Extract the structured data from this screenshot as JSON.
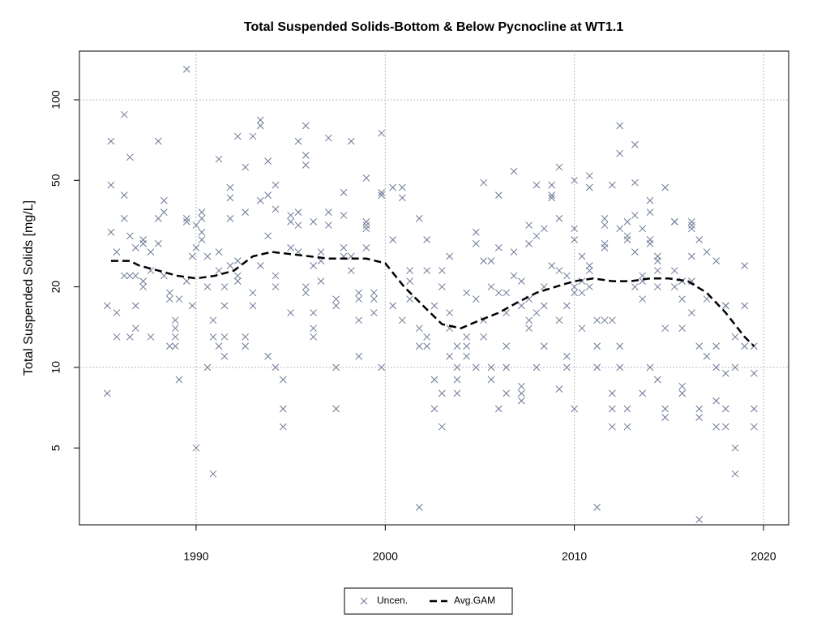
{
  "chart_data": {
    "type": "scatter",
    "title": "Total Suspended Solids-Bottom & Below Pycnocline at WT1.1",
    "y_label": "Total Suspended Solids [mg/L]",
    "log_y": true,
    "xlim": [
      1983.83,
      2021.33
    ],
    "xticks": [
      1990,
      2000,
      2010,
      2020
    ],
    "ylim": [
      2.58,
      152
    ],
    "yticks": [
      5,
      10,
      20,
      50,
      100
    ],
    "grid_x": true,
    "grid_y_values": [
      10,
      100
    ],
    "legend": "bottom",
    "series": [
      {
        "name": "Uncen.",
        "color": "#6b7896",
        "marker": "x",
        "x": [
          1985.3,
          1985.3,
          1985.5,
          1985.5,
          1985.5,
          1985.8,
          1985.8,
          1985.8,
          1986.2,
          1986.2,
          1986.2,
          1986.2,
          1986.5,
          1986.5,
          1986.5,
          1986.5,
          1986.8,
          1986.8,
          1986.8,
          1986.8,
          1987.2,
          1987.2,
          1987.2,
          1987.2,
          1987.6,
          1987.6,
          1987.6,
          1988.0,
          1988.0,
          1988.0,
          1988.3,
          1988.3,
          1988.3,
          1988.6,
          1988.6,
          1988.6,
          1988.9,
          1988.9,
          1988.9,
          1988.9,
          1989.1,
          1989.1,
          1989.5,
          1989.5,
          1989.5,
          1989.5,
          1989.8,
          1989.8,
          1990.0,
          1990.0,
          1990.0,
          1990.3,
          1990.3,
          1990.3,
          1990.3,
          1990.6,
          1990.6,
          1990.6,
          1990.9,
          1990.9,
          1990.9,
          1991.2,
          1991.2,
          1991.2,
          1991.2,
          1991.5,
          1991.5,
          1991.5,
          1991.5,
          1991.8,
          1991.8,
          1991.8,
          1991.8,
          1992.2,
          1992.2,
          1992.2,
          1992.2,
          1992.6,
          1992.6,
          1992.6,
          1992.6,
          1993.0,
          1993.0,
          1993.0,
          1993.4,
          1993.4,
          1993.4,
          1993.4,
          1993.8,
          1993.8,
          1993.8,
          1993.8,
          1994.2,
          1994.2,
          1994.2,
          1994.2,
          1994.2,
          1994.6,
          1994.6,
          1994.6,
          1995.0,
          1995.0,
          1995.0,
          1995.0,
          1995.4,
          1995.4,
          1995.4,
          1995.4,
          1995.8,
          1995.8,
          1995.8,
          1995.8,
          1995.8,
          1996.2,
          1996.2,
          1996.2,
          1996.2,
          1996.2,
          1996.6,
          1996.6,
          1996.6,
          1997.0,
          1997.0,
          1997.0,
          1997.4,
          1997.4,
          1997.4,
          1997.4,
          1997.8,
          1997.8,
          1997.8,
          1997.8,
          1998.2,
          1998.2,
          1998.2,
          1998.6,
          1998.6,
          1998.6,
          1998.6,
          1999.0,
          1999.0,
          1999.0,
          1999.0,
          1999.0,
          1999.4,
          1999.4,
          1999.4,
          1999.8,
          1999.8,
          1999.8,
          1999.8,
          2000.4,
          2000.4,
          2000.4,
          2000.9,
          2000.9,
          2000.9,
          2001.3,
          2001.3,
          2001.3,
          2001.8,
          2001.8,
          2001.8,
          2001.8,
          2002.2,
          2002.2,
          2002.2,
          2002.2,
          2002.6,
          2002.6,
          2002.6,
          2003.0,
          2003.0,
          2003.0,
          2003.0,
          2003.4,
          2003.4,
          2003.4,
          2003.4,
          2003.8,
          2003.8,
          2003.8,
          2003.8,
          2004.3,
          2004.3,
          2004.3,
          2004.3,
          2004.8,
          2004.8,
          2004.8,
          2004.8,
          2005.2,
          2005.2,
          2005.2,
          2005.2,
          2005.6,
          2005.6,
          2005.6,
          2005.6,
          2006.0,
          2006.0,
          2006.0,
          2006.0,
          2006.4,
          2006.4,
          2006.4,
          2006.4,
          2006.4,
          2006.8,
          2006.8,
          2006.8,
          2007.2,
          2007.2,
          2007.2,
          2007.2,
          2007.2,
          2007.6,
          2007.6,
          2007.6,
          2007.6,
          2007.6,
          2008.0,
          2008.0,
          2008.0,
          2008.0,
          2008.4,
          2008.4,
          2008.4,
          2008.4,
          2008.8,
          2008.8,
          2008.8,
          2008.8,
          2009.2,
          2009.2,
          2009.2,
          2009.2,
          2009.2,
          2009.6,
          2009.6,
          2009.6,
          2009.6,
          2010.0,
          2010.0,
          2010.0,
          2010.0,
          2010.0,
          2010.0,
          2010.4,
          2010.4,
          2010.4,
          2010.4,
          2010.8,
          2010.8,
          2010.8,
          2010.8,
          2010.8,
          2011.2,
          2011.2,
          2011.2,
          2011.2,
          2011.6,
          2011.6,
          2011.6,
          2011.6,
          2011.6,
          2012.0,
          2012.0,
          2012.0,
          2012.0,
          2012.0,
          2012.4,
          2012.4,
          2012.4,
          2012.4,
          2012.4,
          2012.8,
          2012.8,
          2012.8,
          2012.8,
          2012.8,
          2013.2,
          2013.2,
          2013.2,
          2013.2,
          2013.2,
          2013.6,
          2013.6,
          2013.6,
          2013.6,
          2013.6,
          2014.0,
          2014.0,
          2014.0,
          2014.0,
          2014.0,
          2014.4,
          2014.4,
          2014.4,
          2014.4,
          2014.4,
          2014.8,
          2014.8,
          2014.8,
          2014.8,
          2015.3,
          2015.3,
          2015.3,
          2015.3,
          2015.7,
          2015.7,
          2015.7,
          2015.7,
          2015.7,
          2016.2,
          2016.2,
          2016.2,
          2016.2,
          2016.2,
          2016.2,
          2016.6,
          2016.6,
          2016.6,
          2016.6,
          2016.6,
          2017.0,
          2017.0,
          2017.0,
          2017.5,
          2017.5,
          2017.5,
          2017.5,
          2017.5,
          2018.0,
          2018.0,
          2018.0,
          2018.0,
          2018.0,
          2018.5,
          2018.5,
          2018.5,
          2018.5,
          2019.0,
          2019.0,
          2019.0,
          2019.5,
          2019.5,
          2019.5,
          2019.5
        ],
        "values": [
          8,
          17,
          32,
          48,
          70,
          27,
          16,
          13,
          88,
          44,
          36,
          22,
          61,
          31,
          22,
          13,
          17,
          14,
          22,
          28,
          20,
          30,
          21,
          29,
          13,
          23,
          27,
          70,
          29,
          36,
          42,
          38,
          22,
          12,
          19,
          18,
          15,
          14,
          12,
          13,
          9,
          18,
          130,
          36,
          35,
          21,
          17,
          26,
          5,
          28,
          34,
          32,
          30,
          36,
          38,
          26,
          20,
          10,
          15,
          4,
          13,
          23,
          12,
          60,
          27,
          17,
          20,
          11,
          13,
          47,
          43,
          36,
          24,
          73,
          25,
          22,
          21,
          56,
          38,
          13,
          12,
          73,
          19,
          17,
          80,
          84,
          42,
          24,
          59,
          44,
          31,
          11,
          48,
          39,
          22,
          20,
          10,
          6,
          7,
          9,
          35,
          16,
          28,
          37,
          38,
          70,
          34,
          27,
          80,
          57,
          62,
          20,
          19,
          35,
          24,
          16,
          14,
          13,
          21,
          27,
          25,
          72,
          38,
          34,
          10,
          7,
          17,
          18,
          45,
          37,
          26,
          28,
          70,
          26,
          23,
          19,
          18,
          15,
          11,
          51,
          34,
          33,
          35,
          28,
          18,
          16,
          19,
          10,
          75,
          45,
          44,
          47,
          30,
          17,
          47,
          43,
          15,
          23,
          21,
          18,
          14,
          3,
          36,
          12,
          30,
          12,
          13,
          23,
          9,
          7,
          17,
          23,
          20,
          8,
          6,
          16,
          11,
          14,
          26,
          10,
          9,
          8,
          12,
          19,
          11,
          12,
          13,
          10,
          18,
          29,
          32,
          25,
          49,
          13,
          15,
          9,
          10,
          20,
          25,
          44,
          28,
          7,
          19,
          19,
          16,
          8,
          10,
          12,
          54,
          27,
          22,
          17,
          7.5,
          8,
          8.5,
          21,
          15,
          14,
          29,
          34,
          18,
          31,
          48,
          16,
          10,
          17,
          20,
          33,
          12,
          48,
          43,
          44,
          24,
          56,
          8.3,
          23,
          15,
          36,
          22,
          17,
          11,
          10,
          7,
          50,
          20,
          19,
          30,
          33,
          26,
          19,
          14,
          21,
          24,
          52,
          47,
          23,
          20,
          15,
          10,
          12,
          3,
          34,
          36,
          29,
          28,
          15,
          15,
          8,
          7,
          6,
          48,
          10,
          12,
          63,
          80,
          33,
          35,
          30,
          31,
          6,
          7,
          27,
          20,
          49,
          37,
          68,
          8,
          33,
          21,
          22,
          18,
          10,
          42,
          38,
          30,
          29,
          20,
          25,
          26,
          23,
          9,
          6.5,
          7,
          14,
          47,
          35,
          23,
          20,
          35,
          14,
          18,
          8,
          8.5,
          21,
          26,
          21,
          34,
          16,
          35,
          33,
          2.7,
          12,
          7,
          30,
          6.5,
          18,
          11,
          27,
          10,
          6,
          12,
          7.5,
          25,
          17,
          17,
          6,
          9.5,
          7,
          4,
          5,
          10,
          13,
          12,
          24,
          17,
          6,
          7,
          9.5,
          12
        ]
      },
      {
        "name": "Avg.GAM",
        "color": "#000000",
        "marker": "dashed-line",
        "x": [
          1985.5,
          1986.5,
          1987,
          1988,
          1989,
          1990,
          1991,
          1992,
          1993,
          1994,
          1995,
          1996,
          1997,
          1998,
          1999,
          2000,
          2001,
          2002,
          2003,
          2004,
          2005,
          2006,
          2007,
          2008,
          2009,
          2010,
          2011,
          2012,
          2013,
          2014,
          2015,
          2016,
          2017,
          2018,
          2019,
          2019.5
        ],
        "values": [
          25,
          25,
          24,
          23,
          22,
          21.5,
          22,
          23,
          26,
          27,
          26.5,
          26,
          25.5,
          25.5,
          25.5,
          24.5,
          20,
          17,
          14.5,
          14,
          15,
          16,
          17.5,
          19,
          20,
          21,
          21.5,
          21,
          21,
          21.5,
          21.5,
          21,
          19,
          16,
          13,
          12
        ]
      }
    ]
  }
}
